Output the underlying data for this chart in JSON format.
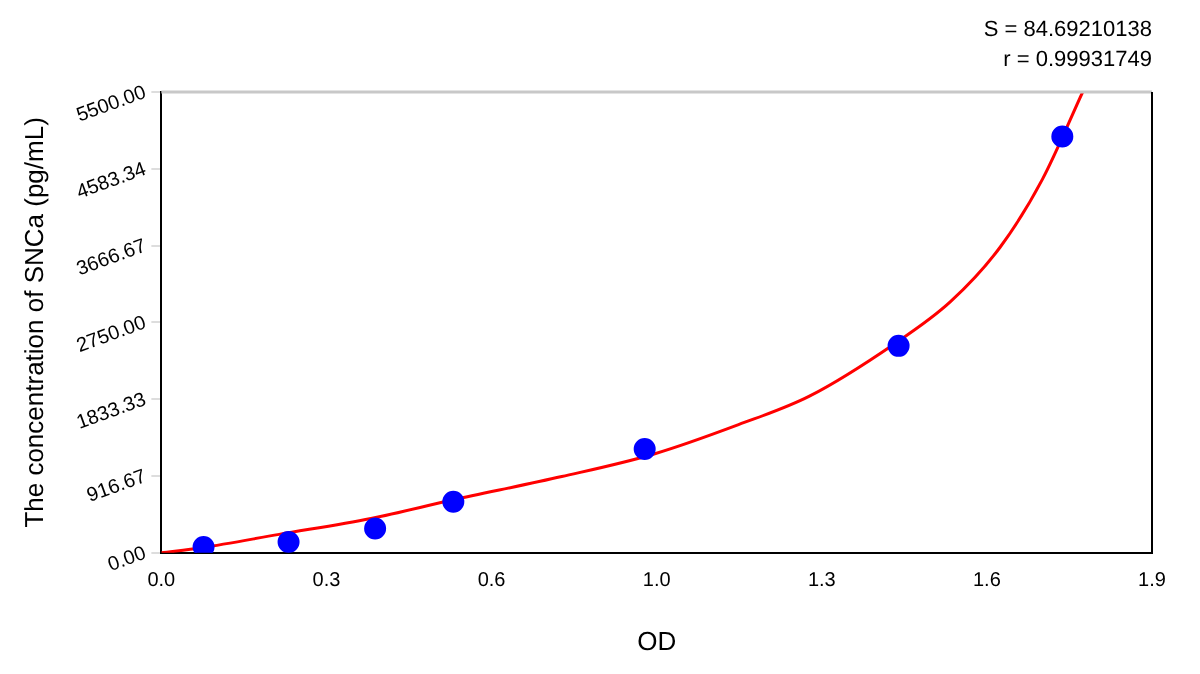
{
  "chart_data": {
    "type": "scatter",
    "xlabel": "OD",
    "ylabel": "The concentration of SNCa (pg/mL)",
    "annotations": [
      "S = 84.69210138",
      "r = 0.99931749"
    ],
    "xlim": [
      0,
      1.9
    ],
    "ylim": [
      0,
      5500
    ],
    "xticks": [
      {
        "value": 0,
        "label": "0.0"
      },
      {
        "value": 0.31667,
        "label": "0.3"
      },
      {
        "value": 0.63333,
        "label": "0.6"
      },
      {
        "value": 0.95,
        "label": "1.0"
      },
      {
        "value": 1.26667,
        "label": "1.3"
      },
      {
        "value": 1.58333,
        "label": "1.6"
      },
      {
        "value": 1.9,
        "label": "1.9"
      }
    ],
    "yticks": [
      {
        "value": 0,
        "label": "0.00"
      },
      {
        "value": 916.67,
        "label": "916.67"
      },
      {
        "value": 1833.33,
        "label": "1833.33"
      },
      {
        "value": 2750,
        "label": "2750.00"
      },
      {
        "value": 3666.67,
        "label": "3666.67"
      },
      {
        "value": 4583.34,
        "label": "4583.34"
      },
      {
        "value": 5500,
        "label": "5500.00"
      }
    ],
    "grid": false,
    "legend": false,
    "series": [
      {
        "color": "#0000ff",
        "marker": "circle",
        "x": [
          0.081,
          0.244,
          0.41,
          0.56,
          0.927,
          1.414,
          1.728
        ],
        "values": [
          70,
          130,
          290,
          610,
          1240,
          2470,
          4970
        ]
      },
      {
        "type": "line",
        "color": "#ff0000",
        "marker": "none",
        "x": [
          0,
          0.077,
          0.226,
          0.402,
          0.558,
          0.768,
          0.945,
          1.107,
          1.243,
          1.405,
          1.514,
          1.609,
          1.69,
          1.767
        ],
        "values": [
          0,
          60,
          220,
          410,
          630,
          910,
          1180,
          1530,
          1870,
          2490,
          3000,
          3650,
          4460,
          5500
        ]
      }
    ]
  }
}
